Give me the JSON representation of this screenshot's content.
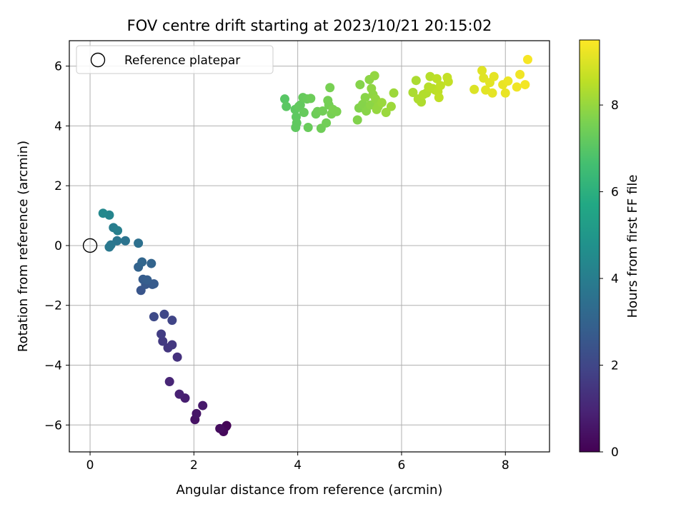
{
  "chart_data": {
    "type": "scatter",
    "title": "FOV centre drift starting at 2023/10/21 20:15:02",
    "xlabel": "Angular distance from reference (arcmin)",
    "ylabel": "Rotation from reference (arcmin)",
    "xlim": [
      -0.4,
      8.85
    ],
    "ylim": [
      -6.9,
      6.85
    ],
    "xticks": [
      0,
      2,
      4,
      6,
      8
    ],
    "yticks": [
      -6,
      -4,
      -2,
      0,
      2,
      4,
      6
    ],
    "grid": true,
    "legend": {
      "placement": "top-left",
      "entries": [
        {
          "label": "Reference platepar",
          "marker": "open-circle"
        }
      ]
    },
    "reference_point": {
      "x": 0,
      "y": 0
    },
    "colorbar": {
      "label": "Hours from first FF file",
      "colormap": "viridis",
      "range": [
        0,
        9.5
      ],
      "ticks": [
        0,
        2,
        4,
        6,
        8
      ]
    },
    "points": [
      {
        "x": 2.63,
        "y": -6.02,
        "c": 0.05
      },
      {
        "x": 2.62,
        "y": -6.05,
        "c": 0.1
      },
      {
        "x": 2.57,
        "y": -6.22,
        "c": 0.2
      },
      {
        "x": 2.5,
        "y": -6.12,
        "c": 0.3
      },
      {
        "x": 2.02,
        "y": -5.82,
        "c": 0.45
      },
      {
        "x": 2.05,
        "y": -5.62,
        "c": 0.55
      },
      {
        "x": 2.17,
        "y": -5.35,
        "c": 0.65
      },
      {
        "x": 1.83,
        "y": -5.1,
        "c": 0.8
      },
      {
        "x": 1.72,
        "y": -4.97,
        "c": 0.9
      },
      {
        "x": 1.53,
        "y": -4.55,
        "c": 1.0
      },
      {
        "x": 1.68,
        "y": -3.73,
        "c": 1.35
      },
      {
        "x": 1.5,
        "y": -3.42,
        "c": 1.5
      },
      {
        "x": 1.58,
        "y": -3.32,
        "c": 1.55
      },
      {
        "x": 1.4,
        "y": -3.2,
        "c": 1.6
      },
      {
        "x": 1.37,
        "y": -2.96,
        "c": 1.7
      },
      {
        "x": 1.58,
        "y": -2.5,
        "c": 1.95
      },
      {
        "x": 1.43,
        "y": -2.3,
        "c": 2.05
      },
      {
        "x": 1.23,
        "y": -2.38,
        "c": 2.1
      },
      {
        "x": 0.98,
        "y": -1.5,
        "c": 2.5
      },
      {
        "x": 1.07,
        "y": -1.3,
        "c": 2.6
      },
      {
        "x": 1.2,
        "y": -1.3,
        "c": 2.65
      },
      {
        "x": 1.23,
        "y": -1.28,
        "c": 2.7
      },
      {
        "x": 1.02,
        "y": -1.13,
        "c": 2.75
      },
      {
        "x": 1.1,
        "y": -1.15,
        "c": 2.8
      },
      {
        "x": 0.93,
        "y": -0.72,
        "c": 3.0
      },
      {
        "x": 1.18,
        "y": -0.6,
        "c": 3.05
      },
      {
        "x": 1.0,
        "y": -0.55,
        "c": 3.1
      },
      {
        "x": 0.93,
        "y": 0.08,
        "c": 3.5
      },
      {
        "x": 0.68,
        "y": 0.16,
        "c": 3.6
      },
      {
        "x": 0.52,
        "y": 0.16,
        "c": 3.7
      },
      {
        "x": 0.4,
        "y": 0.02,
        "c": 3.75
      },
      {
        "x": 0.37,
        "y": -0.05,
        "c": 3.8
      },
      {
        "x": 0.45,
        "y": 0.6,
        "c": 4.0
      },
      {
        "x": 0.53,
        "y": 0.5,
        "c": 4.05
      },
      {
        "x": 0.37,
        "y": 1.02,
        "c": 4.3
      },
      {
        "x": 0.25,
        "y": 1.08,
        "c": 4.4
      },
      {
        "x": 3.75,
        "y": 4.9,
        "c": 7.0
      },
      {
        "x": 3.78,
        "y": 4.65,
        "c": 7.05
      },
      {
        "x": 3.95,
        "y": 4.55,
        "c": 7.1
      },
      {
        "x": 3.97,
        "y": 4.3,
        "c": 7.1
      },
      {
        "x": 3.98,
        "y": 4.1,
        "c": 7.15
      },
      {
        "x": 3.96,
        "y": 3.95,
        "c": 7.15
      },
      {
        "x": 4.02,
        "y": 4.65,
        "c": 7.2
      },
      {
        "x": 4.05,
        "y": 4.7,
        "c": 7.2
      },
      {
        "x": 4.1,
        "y": 4.95,
        "c": 7.25
      },
      {
        "x": 4.12,
        "y": 4.45,
        "c": 7.25
      },
      {
        "x": 4.18,
        "y": 4.9,
        "c": 7.3
      },
      {
        "x": 4.2,
        "y": 3.95,
        "c": 7.3
      },
      {
        "x": 4.25,
        "y": 4.92,
        "c": 7.35
      },
      {
        "x": 4.35,
        "y": 4.4,
        "c": 7.35
      },
      {
        "x": 4.38,
        "y": 4.48,
        "c": 7.4
      },
      {
        "x": 4.45,
        "y": 3.92,
        "c": 7.4
      },
      {
        "x": 4.48,
        "y": 4.5,
        "c": 7.45
      },
      {
        "x": 4.55,
        "y": 4.1,
        "c": 7.45
      },
      {
        "x": 4.58,
        "y": 4.85,
        "c": 7.5
      },
      {
        "x": 4.6,
        "y": 4.7,
        "c": 7.5
      },
      {
        "x": 4.62,
        "y": 5.28,
        "c": 7.55
      },
      {
        "x": 4.65,
        "y": 4.4,
        "c": 7.55
      },
      {
        "x": 4.68,
        "y": 4.55,
        "c": 7.6
      },
      {
        "x": 4.75,
        "y": 4.48,
        "c": 7.6
      },
      {
        "x": 5.15,
        "y": 4.2,
        "c": 7.7
      },
      {
        "x": 5.18,
        "y": 4.6,
        "c": 7.7
      },
      {
        "x": 5.2,
        "y": 5.38,
        "c": 7.75
      },
      {
        "x": 5.25,
        "y": 4.72,
        "c": 7.75
      },
      {
        "x": 5.3,
        "y": 4.95,
        "c": 7.8
      },
      {
        "x": 5.32,
        "y": 4.5,
        "c": 7.8
      },
      {
        "x": 5.38,
        "y": 5.55,
        "c": 7.85
      },
      {
        "x": 5.4,
        "y": 4.7,
        "c": 7.85
      },
      {
        "x": 5.42,
        "y": 5.25,
        "c": 7.9
      },
      {
        "x": 5.45,
        "y": 5.05,
        "c": 7.9
      },
      {
        "x": 5.48,
        "y": 5.68,
        "c": 7.95
      },
      {
        "x": 5.5,
        "y": 4.9,
        "c": 7.95
      },
      {
        "x": 5.52,
        "y": 4.55,
        "c": 8.0
      },
      {
        "x": 5.55,
        "y": 4.65,
        "c": 8.0
      },
      {
        "x": 5.62,
        "y": 4.78,
        "c": 8.05
      },
      {
        "x": 5.7,
        "y": 4.45,
        "c": 8.05
      },
      {
        "x": 5.8,
        "y": 4.65,
        "c": 8.1
      },
      {
        "x": 5.85,
        "y": 5.1,
        "c": 8.1
      },
      {
        "x": 6.22,
        "y": 5.12,
        "c": 8.3
      },
      {
        "x": 6.28,
        "y": 5.52,
        "c": 8.3
      },
      {
        "x": 6.32,
        "y": 4.9,
        "c": 8.35
      },
      {
        "x": 6.38,
        "y": 4.8,
        "c": 8.35
      },
      {
        "x": 6.42,
        "y": 5.05,
        "c": 8.4
      },
      {
        "x": 6.48,
        "y": 5.1,
        "c": 8.4
      },
      {
        "x": 6.52,
        "y": 5.3,
        "c": 8.45
      },
      {
        "x": 6.55,
        "y": 5.65,
        "c": 8.45
      },
      {
        "x": 6.6,
        "y": 5.25,
        "c": 8.5
      },
      {
        "x": 6.65,
        "y": 5.2,
        "c": 8.5
      },
      {
        "x": 6.68,
        "y": 5.58,
        "c": 8.55
      },
      {
        "x": 6.7,
        "y": 5.15,
        "c": 8.55
      },
      {
        "x": 6.72,
        "y": 4.95,
        "c": 8.6
      },
      {
        "x": 6.75,
        "y": 5.35,
        "c": 8.6
      },
      {
        "x": 6.88,
        "y": 5.62,
        "c": 8.65
      },
      {
        "x": 6.9,
        "y": 5.48,
        "c": 8.65
      },
      {
        "x": 7.4,
        "y": 5.22,
        "c": 9.0
      },
      {
        "x": 7.55,
        "y": 5.85,
        "c": 9.05
      },
      {
        "x": 7.58,
        "y": 5.6,
        "c": 9.05
      },
      {
        "x": 7.62,
        "y": 5.2,
        "c": 9.1
      },
      {
        "x": 7.7,
        "y": 5.45,
        "c": 9.1
      },
      {
        "x": 7.75,
        "y": 5.1,
        "c": 9.15
      },
      {
        "x": 7.78,
        "y": 5.65,
        "c": 9.15
      },
      {
        "x": 7.95,
        "y": 5.38,
        "c": 9.2
      },
      {
        "x": 8.0,
        "y": 5.1,
        "c": 9.2
      },
      {
        "x": 8.05,
        "y": 5.5,
        "c": 9.25
      },
      {
        "x": 8.22,
        "y": 5.3,
        "c": 9.3
      },
      {
        "x": 8.28,
        "y": 5.72,
        "c": 9.3
      },
      {
        "x": 8.38,
        "y": 5.38,
        "c": 9.35
      },
      {
        "x": 8.43,
        "y": 6.22,
        "c": 9.4
      }
    ]
  }
}
